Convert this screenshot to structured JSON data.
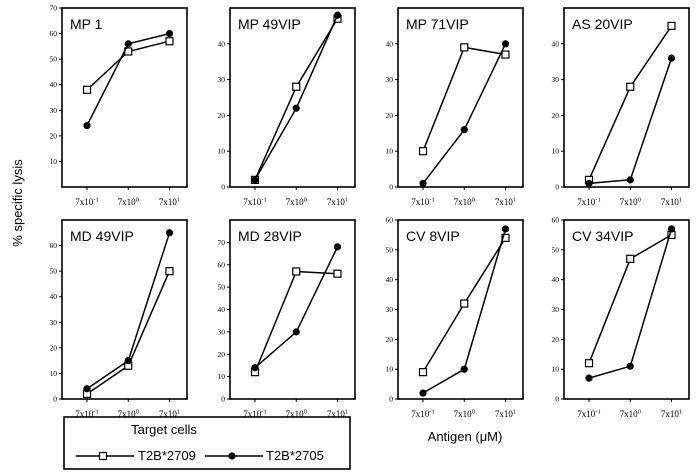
{
  "y_axis_label": "% specific lysis",
  "x_axis_label": "Antigen (μM)",
  "legend": {
    "title": "Target cells",
    "entries": [
      {
        "name": "T2B*2709",
        "marker": "open-square"
      },
      {
        "name": "T2B*2705",
        "marker": "filled-circle"
      }
    ]
  },
  "chart_data": [
    {
      "type": "line",
      "title": "MP 1",
      "categories": [
        "7x10-1",
        "7x100",
        "7x101"
      ],
      "ylim": [
        0,
        70
      ],
      "yticks": [
        10,
        20,
        30,
        40,
        50,
        60,
        70
      ],
      "series": [
        {
          "name": "T2B*2709",
          "values": [
            38,
            53,
            57
          ]
        },
        {
          "name": "T2B*2705",
          "values": [
            24,
            56,
            60
          ]
        }
      ]
    },
    {
      "type": "line",
      "title": "MP 49VIP",
      "categories": [
        "7x10-1",
        "7x100",
        "7x101"
      ],
      "ylim": [
        0,
        50
      ],
      "yticks": [
        0,
        10,
        20,
        30,
        40
      ],
      "series": [
        {
          "name": "T2B*2709",
          "values": [
            2,
            28,
            47
          ]
        },
        {
          "name": "T2B*2705",
          "values": [
            2,
            22,
            48
          ]
        }
      ]
    },
    {
      "type": "line",
      "title": "MP 71VIP",
      "categories": [
        "7x10-1",
        "7x100",
        "7x101"
      ],
      "ylim": [
        0,
        50
      ],
      "yticks": [
        0,
        10,
        20,
        30,
        40
      ],
      "series": [
        {
          "name": "T2B*2709",
          "values": [
            10,
            39,
            37
          ]
        },
        {
          "name": "T2B*2705",
          "values": [
            1,
            16,
            40
          ]
        }
      ]
    },
    {
      "type": "line",
      "title": "AS 20VIP",
      "categories": [
        "7x10-1",
        "7x100",
        "7x101"
      ],
      "ylim": [
        0,
        50
      ],
      "yticks": [
        0,
        10,
        20,
        30,
        40
      ],
      "series": [
        {
          "name": "T2B*2709",
          "values": [
            2,
            28,
            45
          ]
        },
        {
          "name": "T2B*2705",
          "values": [
            1,
            2,
            36
          ]
        }
      ]
    },
    {
      "type": "line",
      "title": "MD 49VIP",
      "categories": [
        "7x10-1",
        "7x100",
        "7x101"
      ],
      "ylim": [
        0,
        70
      ],
      "yticks": [
        0,
        10,
        20,
        30,
        40,
        50,
        60
      ],
      "series": [
        {
          "name": "T2B*2709",
          "values": [
            2,
            13,
            50
          ]
        },
        {
          "name": "T2B*2705",
          "values": [
            4,
            15,
            65
          ]
        }
      ]
    },
    {
      "type": "line",
      "title": "MD 28VIP",
      "categories": [
        "7x10-1",
        "7x100",
        "7x101"
      ],
      "ylim": [
        0,
        80
      ],
      "yticks": [
        0,
        10,
        20,
        30,
        40,
        50,
        60,
        70
      ],
      "series": [
        {
          "name": "T2B*2709",
          "values": [
            12,
            57,
            56
          ]
        },
        {
          "name": "T2B*2705",
          "values": [
            14,
            30,
            68
          ]
        }
      ]
    },
    {
      "type": "line",
      "title": "CV 8VIP",
      "categories": [
        "7x10-1",
        "7x100",
        "7x101"
      ],
      "ylim": [
        0,
        60
      ],
      "yticks": [
        0,
        10,
        20,
        30,
        40,
        50,
        60
      ],
      "series": [
        {
          "name": "T2B*2709",
          "values": [
            9,
            32,
            54
          ]
        },
        {
          "name": "T2B*2705",
          "values": [
            2,
            10,
            57
          ]
        }
      ]
    },
    {
      "type": "line",
      "title": "CV 34VIP",
      "categories": [
        "7x10-1",
        "7x100",
        "7x101"
      ],
      "ylim": [
        0,
        60
      ],
      "yticks": [
        0,
        10,
        20,
        30,
        40,
        50,
        60
      ],
      "series": [
        {
          "name": "T2B*2709",
          "values": [
            12,
            47,
            55
          ]
        },
        {
          "name": "T2B*2705",
          "values": [
            7,
            11,
            57
          ]
        }
      ]
    }
  ]
}
